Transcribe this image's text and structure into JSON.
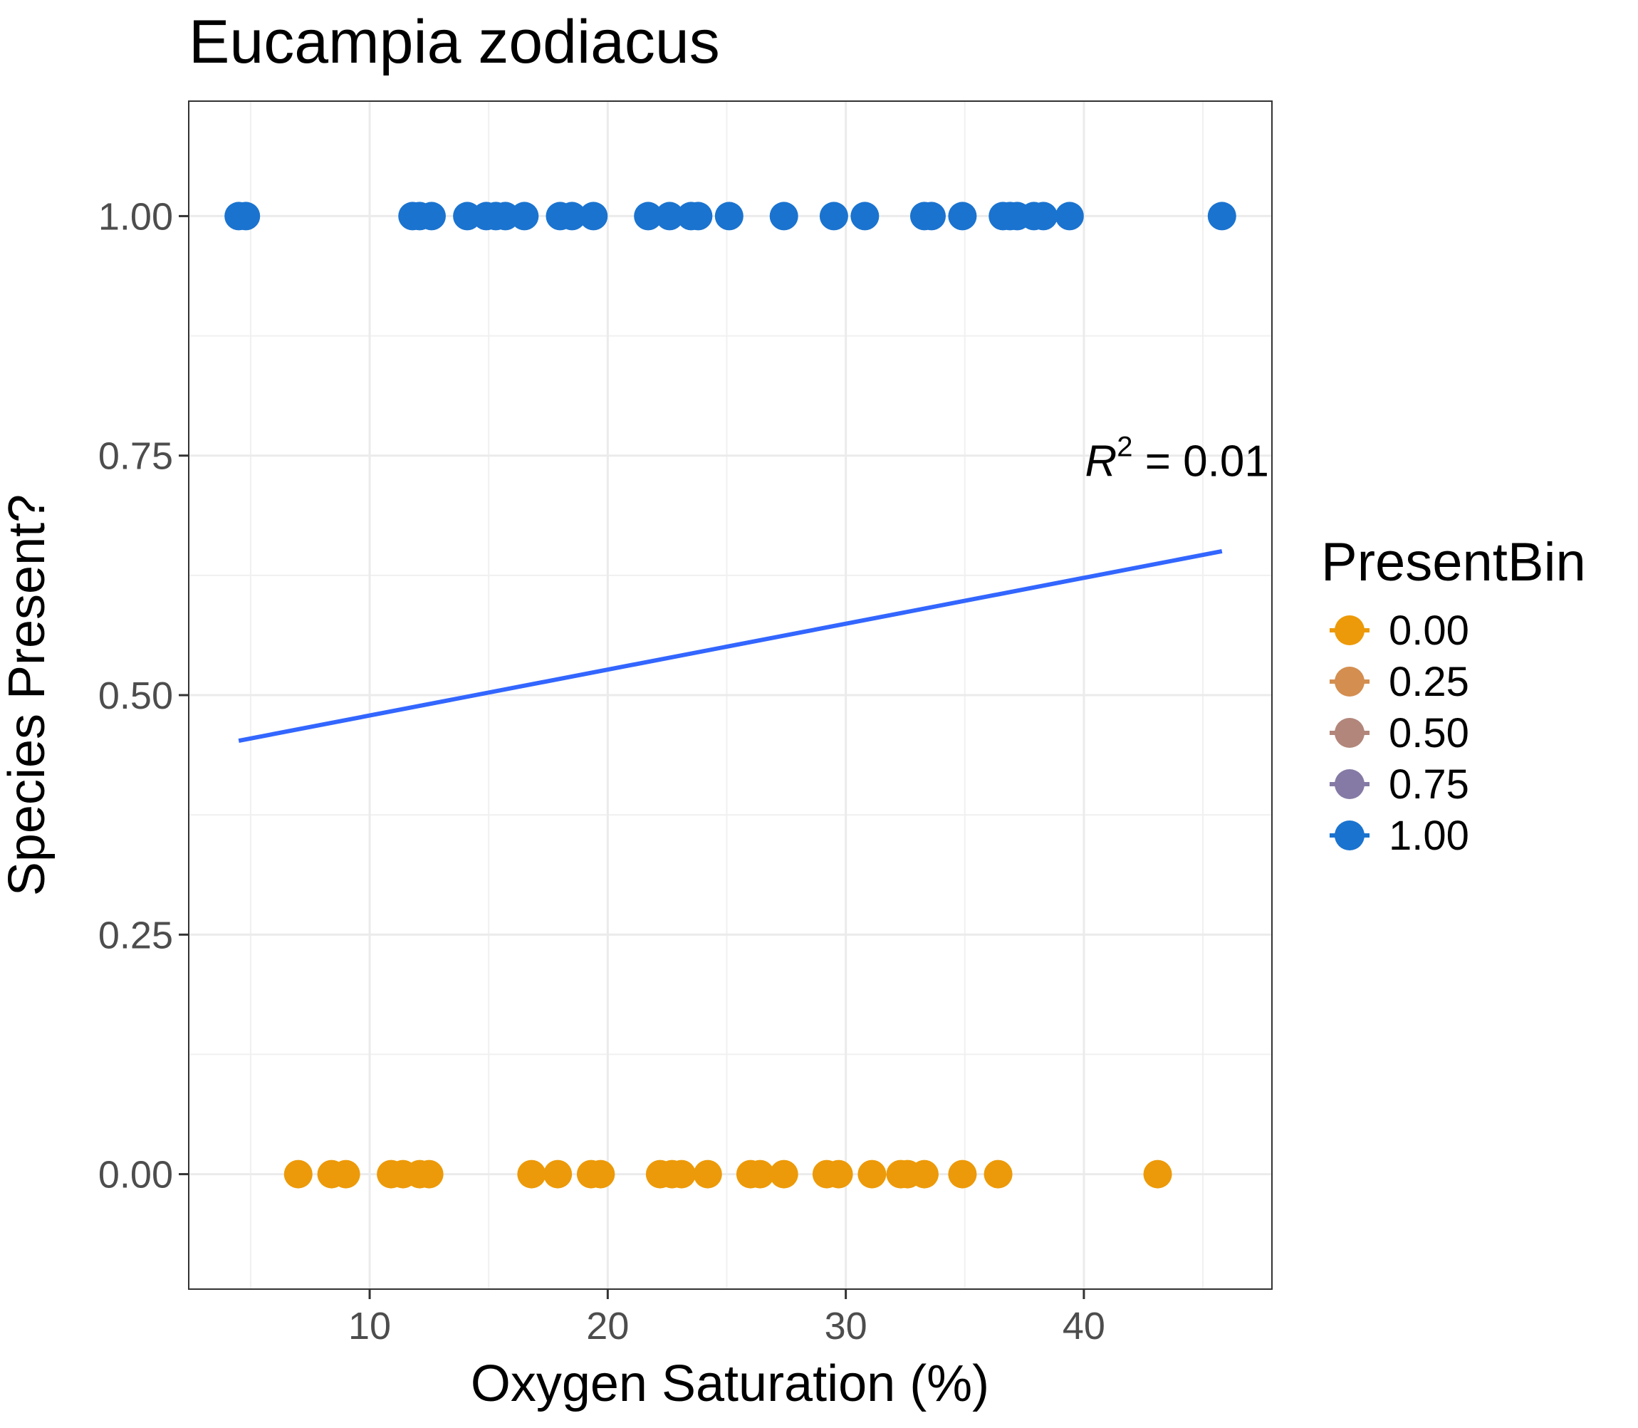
{
  "chart_data": {
    "type": "scatter",
    "title": "Eucampia zodiacus",
    "xlabel": "Oxygen Saturation (%)",
    "ylabel": "Species Present?",
    "xlim": [
      2.4,
      47.9
    ],
    "ylim": [
      -0.12,
      1.12
    ],
    "x_ticks": [
      10,
      20,
      30,
      40
    ],
    "y_ticks": [
      0.0,
      0.25,
      0.5,
      0.75,
      1.0
    ],
    "x_tick_labels": [
      "10",
      "20",
      "30",
      "40"
    ],
    "y_tick_labels": [
      "0.00",
      "0.25",
      "0.50",
      "0.75",
      "1.00"
    ],
    "grid": true,
    "legend": {
      "title": "PresentBin",
      "position": "right",
      "entries": [
        {
          "label": "0.00",
          "value": 0.0,
          "color": "#ec9a09"
        },
        {
          "label": "0.25",
          "value": 0.25,
          "color": "#d38e50"
        },
        {
          "label": "0.50",
          "value": 0.5,
          "color": "#b2867b"
        },
        {
          "label": "0.75",
          "value": 0.75,
          "color": "#857aa5"
        },
        {
          "label": "1.00",
          "value": 1.0,
          "color": "#1a73cf"
        }
      ]
    },
    "series": [
      {
        "name": "1.00",
        "y": 1.0,
        "color": "#1a73cf",
        "x": [
          4.5,
          4.8,
          11.8,
          12.1,
          12.6,
          14.1,
          14.9,
          15.3,
          15.7,
          16.5,
          18.0,
          18.5,
          19.4,
          21.7,
          22.6,
          23.5,
          23.8,
          25.1,
          27.4,
          29.5,
          30.8,
          33.3,
          33.6,
          34.9,
          36.6,
          36.9,
          37.2,
          37.9,
          38.3,
          39.4,
          45.8
        ]
      },
      {
        "name": "0.00",
        "y": 0.0,
        "color": "#ec9a09",
        "x": [
          7.0,
          8.4,
          9.0,
          10.9,
          11.4,
          12.1,
          12.5,
          16.8,
          17.9,
          19.3,
          19.7,
          22.2,
          22.7,
          23.1,
          24.2,
          26.0,
          26.4,
          27.4,
          29.2,
          29.7,
          31.1,
          32.3,
          32.6,
          33.3,
          34.9,
          36.4,
          43.1
        ]
      }
    ],
    "fit_line": {
      "type": "linear",
      "color": "#3366ff",
      "x": [
        4.5,
        45.8
      ],
      "y": [
        0.4524,
        0.6502
      ]
    },
    "annotation": {
      "text_prefix": "R",
      "superscript": "2",
      "text_rest": " = 0.01",
      "x": 45.8,
      "y": 0.745
    }
  }
}
